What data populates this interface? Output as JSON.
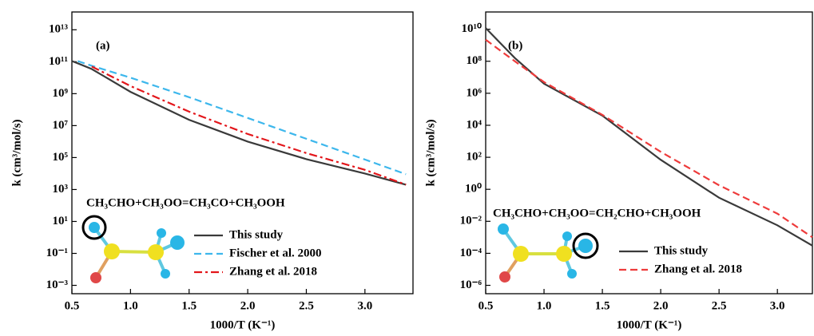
{
  "chart_data": [
    {
      "type": "line",
      "log_y": true,
      "xlabel": "1000/T (K⁻¹)",
      "ylabel": "k (cm³/mol/s)",
      "annotations": [
        "(a)",
        "CH₃CHO+CH₃OO=CH₃CO+CH₃OOH"
      ],
      "xlim": [
        0.5,
        3.41
      ],
      "xticks": [
        0.5,
        {
          "value": 1,
          "label": "1.0"
        },
        1.5,
        {
          "value": 2,
          "label": "2.0"
        },
        2.5,
        {
          "value": 3,
          "label": "3.0"
        }
      ],
      "ylim": [
        0.0003,
        130000000000000
      ],
      "yticks": [
        {
          "value": 10000000000000,
          "label": "10¹³"
        },
        {
          "value": 100000000000,
          "label": "10¹¹"
        },
        {
          "value": 1000000000,
          "label": "10⁹"
        },
        {
          "value": 10000000,
          "label": "10⁷"
        },
        {
          "value": 100000,
          "label": "10⁵"
        },
        {
          "value": 1000,
          "label": "10³"
        },
        {
          "value": 10,
          "label": "10¹"
        },
        {
          "value": 0.1,
          "label": "10⁻¹"
        },
        {
          "value": 0.001,
          "label": "10⁻³"
        }
      ],
      "x": [
        0.5,
        0.55,
        0.67,
        1.0,
        1.5,
        2.0,
        2.5,
        3.0,
        3.35
      ],
      "series": [
        {
          "name": "This study",
          "color": "#3a3a3a",
          "dash": "solid",
          "values": [
            110000000000,
            80000000000,
            35000000000,
            1300000000,
            23000000,
            1000000,
            80000,
            10000,
            2000
          ]
        },
        {
          "name": "Fischer et al. 2000",
          "color": "#3db7ec",
          "dash": "dash",
          "values": [
            null,
            110000000000,
            56000000000,
            10000000000,
            600000000,
            30000000,
            1500000,
            75000,
            9000
          ]
        },
        {
          "name": "Zhang et al. 2018",
          "color": "#e3161b",
          "dash": "dash-dot",
          "values": [
            null,
            null,
            50000000000,
            3000000000,
            75000000,
            3000000,
            190000,
            17000,
            2000
          ]
        }
      ]
    },
    {
      "type": "line",
      "log_y": true,
      "xlabel": "1000/T (K⁻¹)",
      "ylabel": "k (cm³/mol/s)",
      "annotations": [
        "(b)",
        "CH₃CHO+CH₃OO=CH₂CHO+CH₃OOH"
      ],
      "xlim": [
        0.5,
        3.3
      ],
      "xticks": [
        0.5,
        {
          "value": 1,
          "label": "1.0"
        },
        1.5,
        {
          "value": 2,
          "label": "2.0"
        },
        2.5,
        {
          "value": 3,
          "label": "3.0"
        }
      ],
      "ylim": [
        3e-07,
        120000000000
      ],
      "yticks": [
        {
          "value": 10000000000,
          "label": "10¹⁰"
        },
        {
          "value": 100000000,
          "label": "10⁸"
        },
        {
          "value": 1000000,
          "label": "10⁶"
        },
        {
          "value": 10000,
          "label": "10⁴"
        },
        {
          "value": 100,
          "label": "10²"
        },
        {
          "value": 1,
          "label": "10⁰"
        },
        {
          "value": 0.01,
          "label": "10⁻²"
        },
        {
          "value": 0.0001,
          "label": "10⁻⁴"
        },
        {
          "value": 1e-06,
          "label": "10⁻⁶"
        }
      ],
      "x": [
        0.5,
        0.75,
        1.0,
        1.5,
        2.0,
        2.5,
        3.0,
        3.3
      ],
      "series": [
        {
          "name": "This study",
          "color": "#3a3a3a",
          "dash": "solid",
          "values": [
            12000000000,
            160000000,
            4000000,
            40000,
            70,
            0.3,
            0.0056,
            0.0003
          ]
        },
        {
          "name": "Zhang et al. 2018",
          "color": "#ee3b3b",
          "dash": "dash",
          "values": [
            2200000000,
            100000000,
            5000000,
            45000,
            220,
            1.8,
            0.03,
            0.001
          ]
        }
      ]
    }
  ]
}
